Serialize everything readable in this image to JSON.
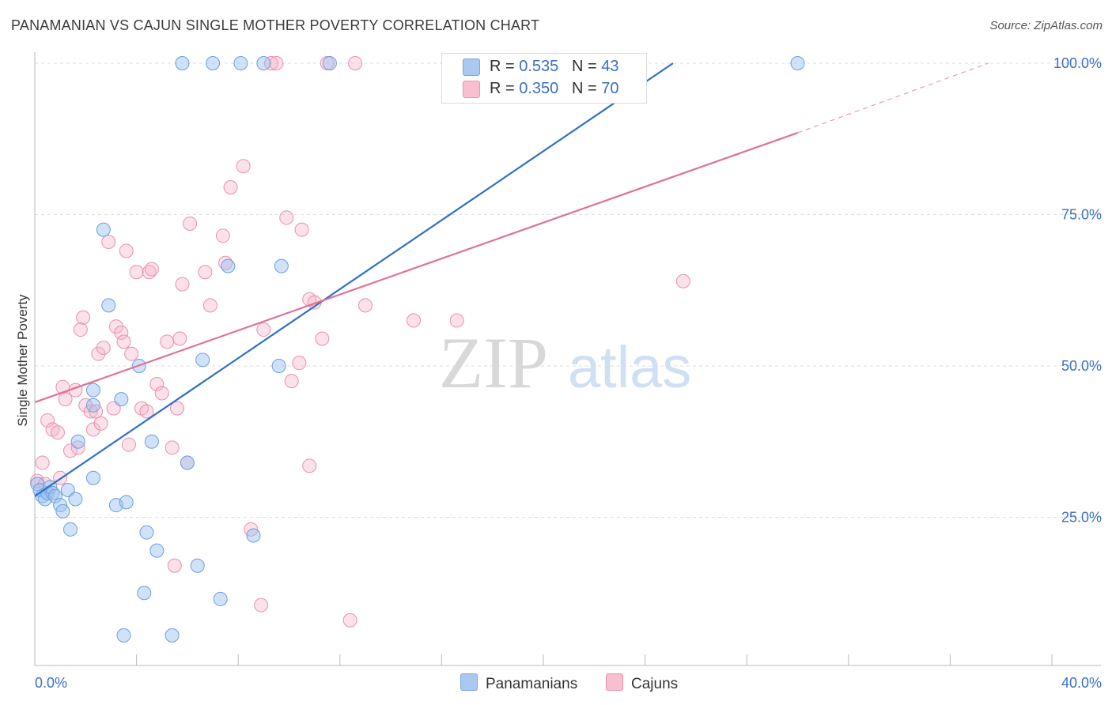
{
  "title": "PANAMANIAN VS CAJUN SINGLE MOTHER POVERTY CORRELATION CHART",
  "source": "Source: ZipAtlas.com",
  "watermark": {
    "zip": "ZIP",
    "atlas": "atlas"
  },
  "legend": {
    "rows": [
      {
        "r_label": "R =",
        "r_value": "0.535",
        "n_label": "N =",
        "n_value": "43",
        "color": "#aac8f0",
        "border": "#7aa6e0"
      },
      {
        "r_label": "R =",
        "r_value": "0.350",
        "n_label": "N =",
        "n_value": "70",
        "color": "#f7bfd0",
        "border": "#e895b0"
      }
    ],
    "bottom": [
      {
        "label": "Panamanians",
        "color": "#aac8f0",
        "border": "#7aa6e0"
      },
      {
        "label": "Cajuns",
        "color": "#f7bfd0",
        "border": "#e895b0"
      }
    ]
  },
  "colors": {
    "blue_line": "#2e6fc9",
    "pink_line": "#e0709a",
    "blue_fill": "rgba(150,190,240,0.45)",
    "blue_stroke": "#6d9fe0",
    "pink_fill": "rgba(245,180,200,0.40)",
    "pink_stroke": "#e990b0",
    "axis_text": "#3a6fc4"
  },
  "chart_data": {
    "type": "scatter",
    "title": "PANAMANIAN VS CAJUN SINGLE MOTHER POVERTY CORRELATION CHART",
    "xlabel": "",
    "ylabel": "Single Mother Poverty",
    "xlim": [
      0,
      40
    ],
    "ylim": [
      0,
      104
    ],
    "x_tick_labels": [
      {
        "value": 0,
        "label": "0.0%"
      },
      {
        "value": 40,
        "label": "40.0%"
      }
    ],
    "y_tick_labels": [
      {
        "value": 25,
        "label": "25.0%"
      },
      {
        "value": 50,
        "label": "50.0%"
      },
      {
        "value": 75,
        "label": "75.0%"
      },
      {
        "value": 100,
        "label": "100.0%"
      }
    ],
    "series": [
      {
        "name": "Panamanians",
        "trend": {
          "x": [
            0,
            25.1
          ],
          "y": [
            28.5,
            100
          ]
        },
        "points": [
          [
            0.1,
            30.5
          ],
          [
            0.2,
            29.5
          ],
          [
            0.3,
            28.5
          ],
          [
            0.4,
            28
          ],
          [
            0.5,
            29
          ],
          [
            0.6,
            30
          ],
          [
            0.7,
            29
          ],
          [
            0.8,
            28.5
          ],
          [
            1.0,
            27
          ],
          [
            1.1,
            26
          ],
          [
            1.3,
            29.5
          ],
          [
            1.4,
            23
          ],
          [
            1.6,
            28
          ],
          [
            1.7,
            37.5
          ],
          [
            2.3,
            31.5
          ],
          [
            2.3,
            46
          ],
          [
            2.3,
            43.5
          ],
          [
            2.9,
            60
          ],
          [
            3.2,
            27
          ],
          [
            3.4,
            44.5
          ],
          [
            3.5,
            5.5
          ],
          [
            3.6,
            27.5
          ],
          [
            4.1,
            50
          ],
          [
            4.3,
            12.5
          ],
          [
            4.4,
            22.5
          ],
          [
            4.6,
            37.5
          ],
          [
            4.8,
            19.5
          ],
          [
            5.4,
            5.5
          ],
          [
            6.0,
            34
          ],
          [
            6.4,
            17
          ],
          [
            6.6,
            51
          ],
          [
            7.3,
            11.5
          ],
          [
            7.6,
            66.5
          ],
          [
            8.6,
            22
          ],
          [
            9.6,
            50
          ],
          [
            9.7,
            66.5
          ],
          [
            5.8,
            100
          ],
          [
            7.0,
            100
          ],
          [
            8.1,
            100
          ],
          [
            9.0,
            100
          ],
          [
            11.6,
            100
          ],
          [
            30.0,
            100
          ],
          [
            2.7,
            72.5
          ]
        ]
      },
      {
        "name": "Cajuns",
        "trend": {
          "x": [
            0,
            30.0
          ],
          "y": [
            44,
            88.5
          ]
        },
        "trend_dashed": {
          "x": [
            30.0,
            37.5
          ],
          "y": [
            88.5,
            100
          ]
        },
        "points": [
          [
            0.1,
            31
          ],
          [
            0.3,
            34
          ],
          [
            0.4,
            30.5
          ],
          [
            0.5,
            41
          ],
          [
            0.7,
            39.5
          ],
          [
            0.9,
            39
          ],
          [
            1.0,
            31.5
          ],
          [
            1.1,
            46.5
          ],
          [
            1.2,
            44.5
          ],
          [
            1.4,
            36
          ],
          [
            1.6,
            46
          ],
          [
            1.7,
            36.5
          ],
          [
            1.8,
            56
          ],
          [
            1.9,
            58
          ],
          [
            2.0,
            43.5
          ],
          [
            2.2,
            42.5
          ],
          [
            2.3,
            39.5
          ],
          [
            2.5,
            52
          ],
          [
            2.6,
            40.5
          ],
          [
            2.7,
            53
          ],
          [
            2.9,
            70.5
          ],
          [
            3.1,
            43
          ],
          [
            3.2,
            56.5
          ],
          [
            3.4,
            55.5
          ],
          [
            3.5,
            54
          ],
          [
            3.6,
            69
          ],
          [
            3.7,
            37
          ],
          [
            3.8,
            52
          ],
          [
            4.0,
            65.5
          ],
          [
            4.2,
            43
          ],
          [
            4.5,
            65.5
          ],
          [
            4.6,
            66
          ],
          [
            4.8,
            47
          ],
          [
            5.0,
            45.5
          ],
          [
            5.2,
            54
          ],
          [
            5.4,
            36.5
          ],
          [
            5.5,
            17
          ],
          [
            5.6,
            43
          ],
          [
            5.7,
            54.5
          ],
          [
            5.8,
            63.5
          ],
          [
            6.0,
            34
          ],
          [
            6.1,
            73.5
          ],
          [
            6.7,
            65.5
          ],
          [
            6.9,
            60
          ],
          [
            7.4,
            71.5
          ],
          [
            7.5,
            67
          ],
          [
            7.7,
            79.5
          ],
          [
            8.2,
            83
          ],
          [
            8.5,
            23
          ],
          [
            8.9,
            10.5
          ],
          [
            9.0,
            56
          ],
          [
            9.3,
            100
          ],
          [
            9.5,
            100
          ],
          [
            9.9,
            74.5
          ],
          [
            10.1,
            47.5
          ],
          [
            10.4,
            50.5
          ],
          [
            10.5,
            72.5
          ],
          [
            10.8,
            61
          ],
          [
            11.0,
            60.5
          ],
          [
            10.8,
            33.5
          ],
          [
            11.3,
            54.5
          ],
          [
            12.4,
            8
          ],
          [
            12.6,
            100
          ],
          [
            13.0,
            60
          ],
          [
            14.9,
            57.5
          ],
          [
            16.6,
            57.5
          ],
          [
            25.5,
            64
          ],
          [
            11.5,
            100
          ],
          [
            2.4,
            42.5
          ],
          [
            4.4,
            42.5
          ]
        ]
      }
    ]
  }
}
